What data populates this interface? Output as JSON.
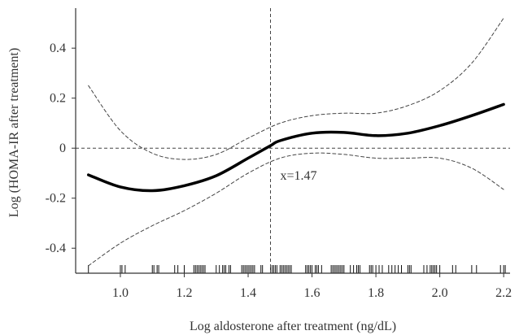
{
  "chart_data": {
    "type": "line",
    "title": "",
    "xlabel": "Log aldosterone after treatment (ng/dL)",
    "ylabel": "Log (HOMA-IR after treatment)",
    "xlim": [
      0.86,
      2.22
    ],
    "ylim": [
      -0.5,
      0.56
    ],
    "x_ticks": [
      1.0,
      1.2,
      1.4,
      1.6,
      1.8,
      2.0,
      2.2
    ],
    "x_tick_labels": [
      "1.0",
      "1.2",
      "1.4",
      "1.6",
      "1.8",
      "2.0",
      "2.2"
    ],
    "y_ticks": [
      0.4,
      0.2,
      0,
      -0.2,
      -0.4
    ],
    "y_tick_labels": [
      "0.4",
      "0.2",
      "0",
      "-0.2",
      "-0.4"
    ],
    "grid": false,
    "legend": "none",
    "series": [
      {
        "role": "estimate",
        "style": "solid",
        "x": [
          0.9,
          1.0,
          1.1,
          1.2,
          1.3,
          1.4,
          1.47,
          1.5,
          1.6,
          1.7,
          1.8,
          1.9,
          2.0,
          2.1,
          2.2
        ],
        "y": [
          -0.107,
          -0.155,
          -0.17,
          -0.15,
          -0.11,
          -0.04,
          0.01,
          0.03,
          0.06,
          0.063,
          0.05,
          0.06,
          0.09,
          0.13,
          0.175
        ]
      },
      {
        "role": "upper-ci",
        "style": "dashed",
        "x": [
          0.9,
          1.0,
          1.1,
          1.2,
          1.3,
          1.4,
          1.5,
          1.6,
          1.7,
          1.8,
          1.9,
          2.0,
          2.1,
          2.2
        ],
        "y": [
          0.25,
          0.07,
          -0.02,
          -0.045,
          -0.025,
          0.04,
          0.1,
          0.13,
          0.14,
          0.14,
          0.17,
          0.23,
          0.34,
          0.52
        ]
      },
      {
        "role": "lower-ci",
        "style": "dashed",
        "x": [
          0.9,
          1.0,
          1.1,
          1.2,
          1.3,
          1.4,
          1.5,
          1.6,
          1.7,
          1.8,
          1.9,
          2.0,
          2.1,
          2.2
        ],
        "y": [
          -0.47,
          -0.38,
          -0.31,
          -0.25,
          -0.18,
          -0.1,
          -0.04,
          -0.02,
          -0.025,
          -0.04,
          -0.04,
          -0.04,
          -0.08,
          -0.165
        ]
      }
    ],
    "reference_lines": [
      {
        "axis": "y",
        "value": 0,
        "style": "dashed"
      },
      {
        "axis": "x",
        "value": 1.47,
        "style": "dashed"
      }
    ],
    "annotation": {
      "text": "x=1.47",
      "x": 1.47,
      "y": -0.11
    },
    "rug": [
      0.9,
      1.0,
      1.005,
      1.015,
      1.1,
      1.105,
      1.115,
      1.12,
      1.17,
      1.18,
      1.2,
      1.23,
      1.235,
      1.24,
      1.245,
      1.25,
      1.255,
      1.26,
      1.265,
      1.3,
      1.31,
      1.32,
      1.325,
      1.33,
      1.34,
      1.345,
      1.38,
      1.385,
      1.39,
      1.395,
      1.4,
      1.405,
      1.41,
      1.415,
      1.42,
      1.44,
      1.445,
      1.47,
      1.475,
      1.48,
      1.485,
      1.49,
      1.5,
      1.505,
      1.51,
      1.515,
      1.52,
      1.525,
      1.53,
      1.535,
      1.58,
      1.585,
      1.59,
      1.595,
      1.6,
      1.61,
      1.615,
      1.62,
      1.63,
      1.66,
      1.665,
      1.67,
      1.675,
      1.68,
      1.685,
      1.69,
      1.695,
      1.7,
      1.72,
      1.73,
      1.74,
      1.745,
      1.75,
      1.78,
      1.785,
      1.79,
      1.8,
      1.81,
      1.82,
      1.84,
      1.85,
      1.86,
      1.87,
      1.88,
      1.9,
      1.905,
      1.91,
      1.95,
      1.96,
      1.97,
      1.975,
      1.98,
      1.985,
      1.99,
      2.0,
      2.04,
      2.05,
      2.1,
      2.115,
      2.19,
      2.2,
      2.205
    ]
  }
}
